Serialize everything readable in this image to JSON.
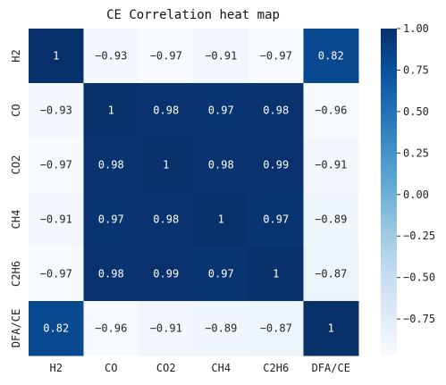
{
  "chart_data": {
    "type": "heatmap",
    "title": "CE Correlation heat map",
    "x_labels": [
      "H2",
      "CO",
      "CO2",
      "CH4",
      "C2H6",
      "DFA/CE"
    ],
    "y_labels": [
      "H2",
      "CO",
      "CO2",
      "CH4",
      "C2H6",
      "DFA/CE"
    ],
    "cells": [
      [
        {
          "v": 1,
          "label": "1"
        },
        {
          "v": -0.93,
          "label": "−0.93"
        },
        {
          "v": -0.97,
          "label": "−0.97"
        },
        {
          "v": -0.91,
          "label": "−0.91"
        },
        {
          "v": -0.97,
          "label": "−0.97"
        },
        {
          "v": 0.82,
          "label": "0.82"
        }
      ],
      [
        {
          "v": -0.93,
          "label": "−0.93"
        },
        {
          "v": 1,
          "label": "1"
        },
        {
          "v": 0.98,
          "label": "0.98"
        },
        {
          "v": 0.97,
          "label": "0.97"
        },
        {
          "v": 0.98,
          "label": "0.98"
        },
        {
          "v": -0.96,
          "label": "−0.96"
        }
      ],
      [
        {
          "v": -0.97,
          "label": "−0.97"
        },
        {
          "v": 0.98,
          "label": "0.98"
        },
        {
          "v": 1,
          "label": "1"
        },
        {
          "v": 0.98,
          "label": "0.98"
        },
        {
          "v": 0.99,
          "label": "0.99"
        },
        {
          "v": -0.91,
          "label": "−0.91"
        }
      ],
      [
        {
          "v": -0.91,
          "label": "−0.91"
        },
        {
          "v": 0.97,
          "label": "0.97"
        },
        {
          "v": 0.98,
          "label": "0.98"
        },
        {
          "v": 1,
          "label": "1"
        },
        {
          "v": 0.97,
          "label": "0.97"
        },
        {
          "v": -0.89,
          "label": "−0.89"
        }
      ],
      [
        {
          "v": -0.97,
          "label": "−0.97"
        },
        {
          "v": 0.98,
          "label": "0.98"
        },
        {
          "v": 0.99,
          "label": "0.99"
        },
        {
          "v": 0.97,
          "label": "0.97"
        },
        {
          "v": 1,
          "label": "1"
        },
        {
          "v": -0.87,
          "label": "−0.87"
        }
      ],
      [
        {
          "v": 0.82,
          "label": "0.82"
        },
        {
          "v": -0.96,
          "label": "−0.96"
        },
        {
          "v": -0.91,
          "label": "−0.91"
        },
        {
          "v": -0.89,
          "label": "−0.89"
        },
        {
          "v": -0.87,
          "label": "−0.87"
        },
        {
          "v": 1,
          "label": "1"
        }
      ]
    ],
    "colorbar": {
      "min": -0.97,
      "max": 1.0,
      "ticks": [
        {
          "v": 1.0,
          "label": "1.00"
        },
        {
          "v": 0.75,
          "label": "0.75"
        },
        {
          "v": 0.5,
          "label": "0.50"
        },
        {
          "v": 0.25,
          "label": "0.25"
        },
        {
          "v": 0.0,
          "label": "0.00"
        },
        {
          "v": -0.25,
          "label": "−0.25"
        },
        {
          "v": -0.5,
          "label": "−0.50"
        },
        {
          "v": -0.75,
          "label": "−0.75"
        }
      ],
      "colormap": "Blues",
      "colors": [
        "#f7fbff",
        "#deebf7",
        "#c6dbef",
        "#9ecae1",
        "#6baed6",
        "#4292c6",
        "#2171b5",
        "#08519c",
        "#08306b"
      ]
    }
  }
}
